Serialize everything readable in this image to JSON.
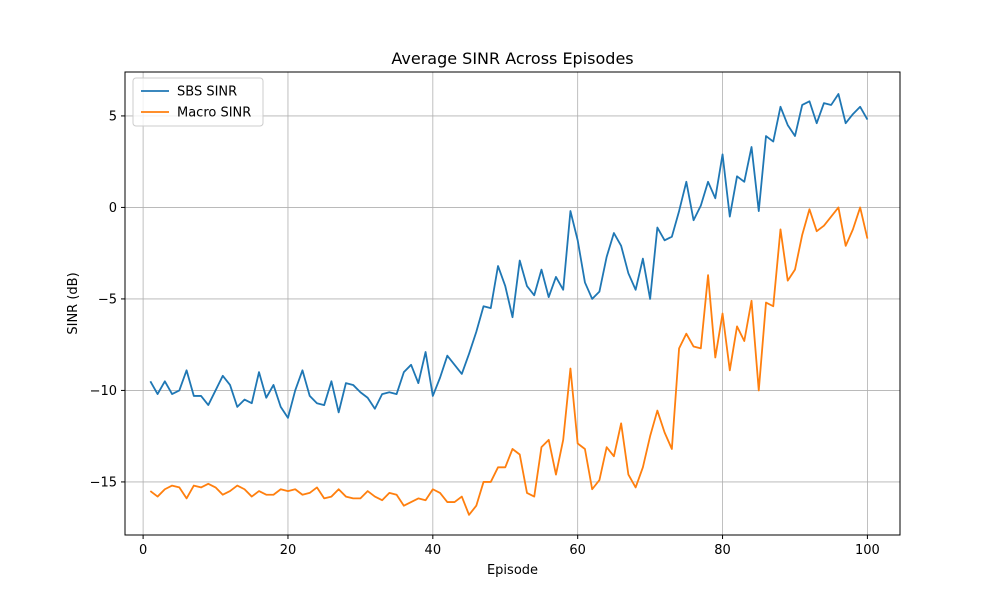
{
  "chart_data": {
    "type": "line",
    "title": "Average SINR Across Episodes",
    "xlabel": "Episode",
    "ylabel": "SINR (dB)",
    "xlim": [
      -2.5,
      104.5
    ],
    "ylim": [
      -17.9,
      7.4
    ],
    "xticks": [
      0,
      20,
      40,
      60,
      80,
      100
    ],
    "yticks": [
      -15,
      -10,
      -5,
      0,
      5
    ],
    "ytick_labels": [
      "−15",
      "−10",
      "−5",
      "0",
      "5"
    ],
    "grid": true,
    "legend_position": "top-left",
    "x": [
      1,
      2,
      3,
      4,
      5,
      6,
      7,
      8,
      9,
      10,
      11,
      12,
      13,
      14,
      15,
      16,
      17,
      18,
      19,
      20,
      21,
      22,
      23,
      24,
      25,
      26,
      27,
      28,
      29,
      30,
      31,
      32,
      33,
      34,
      35,
      36,
      37,
      38,
      39,
      40,
      41,
      42,
      43,
      44,
      45,
      46,
      47,
      48,
      49,
      50,
      51,
      52,
      53,
      54,
      55,
      56,
      57,
      58,
      59,
      60,
      61,
      62,
      63,
      64,
      65,
      66,
      67,
      68,
      69,
      70,
      71,
      72,
      73,
      74,
      75,
      76,
      77,
      78,
      79,
      80,
      81,
      82,
      83,
      84,
      85,
      86,
      87,
      88,
      89,
      90,
      91,
      92,
      93,
      94,
      95,
      96,
      97,
      98,
      99,
      100
    ],
    "series": [
      {
        "name": "SBS SINR",
        "color": "#1f77b4",
        "values": [
          -9.5,
          -10.2,
          -9.5,
          -10.2,
          -10.0,
          -8.9,
          -10.3,
          -10.3,
          -10.8,
          -10.0,
          -9.2,
          -9.7,
          -10.9,
          -10.5,
          -10.7,
          -9.0,
          -10.4,
          -9.7,
          -10.9,
          -11.5,
          -10.0,
          -8.9,
          -10.3,
          -10.7,
          -10.8,
          -9.5,
          -11.2,
          -9.6,
          -9.7,
          -10.1,
          -10.4,
          -11.0,
          -10.2,
          -10.1,
          -10.2,
          -9.0,
          -8.6,
          -9.6,
          -7.9,
          -10.3,
          -9.3,
          -8.1,
          -8.6,
          -9.1,
          -8.0,
          -6.8,
          -5.4,
          -5.5,
          -3.2,
          -4.3,
          -6.0,
          -2.9,
          -4.3,
          -4.8,
          -3.4,
          -4.9,
          -3.8,
          -4.5,
          -0.2,
          -1.8,
          -4.1,
          -5.0,
          -4.6,
          -2.7,
          -1.4,
          -2.1,
          -3.6,
          -4.5,
          -2.8,
          -5.0,
          -1.1,
          -1.8,
          -1.6,
          -0.2,
          1.4,
          -0.7,
          0.1,
          1.4,
          0.5,
          2.9,
          -0.5,
          1.7,
          1.4,
          3.3,
          -0.2,
          3.9,
          3.6,
          5.5,
          4.5,
          3.9,
          5.6,
          5.8,
          4.6,
          5.7,
          5.6,
          6.2,
          4.6,
          5.1,
          5.5,
          4.8
        ]
      },
      {
        "name": "Macro SINR",
        "color": "#ff7f0e",
        "values": [
          -15.5,
          -15.8,
          -15.4,
          -15.2,
          -15.3,
          -15.9,
          -15.2,
          -15.3,
          -15.1,
          -15.3,
          -15.7,
          -15.5,
          -15.2,
          -15.4,
          -15.8,
          -15.5,
          -15.7,
          -15.7,
          -15.4,
          -15.5,
          -15.4,
          -15.7,
          -15.6,
          -15.3,
          -15.9,
          -15.8,
          -15.4,
          -15.8,
          -15.9,
          -15.9,
          -15.5,
          -15.8,
          -16.0,
          -15.6,
          -15.7,
          -16.3,
          -16.1,
          -15.9,
          -16.0,
          -15.4,
          -15.6,
          -16.1,
          -16.1,
          -15.8,
          -16.8,
          -16.3,
          -15.0,
          -15.0,
          -14.2,
          -14.2,
          -13.2,
          -13.5,
          -15.6,
          -15.8,
          -13.1,
          -12.7,
          -14.6,
          -12.7,
          -8.8,
          -12.9,
          -13.2,
          -15.4,
          -14.9,
          -13.1,
          -13.6,
          -11.8,
          -14.6,
          -15.3,
          -14.2,
          -12.5,
          -11.1,
          -12.3,
          -13.2,
          -7.7,
          -6.9,
          -7.6,
          -7.7,
          -3.7,
          -8.2,
          -5.8,
          -8.9,
          -6.5,
          -7.3,
          -5.1,
          -10.0,
          -5.2,
          -5.4,
          -1.2,
          -4.0,
          -3.4,
          -1.5,
          -0.1,
          -1.3,
          -1.0,
          -0.5,
          0.0,
          -2.1,
          -1.2,
          0.0,
          -1.7
        ]
      }
    ]
  }
}
